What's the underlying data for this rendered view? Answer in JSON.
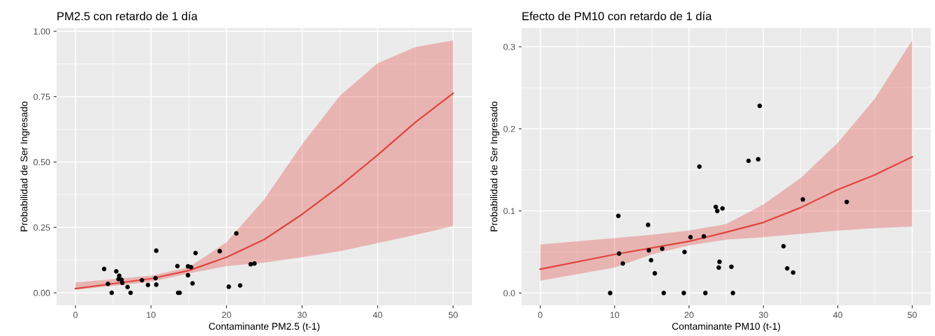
{
  "chart_data": [
    {
      "type": "scatter",
      "title": "PM2.5 con retardo de 1 día",
      "xlabel": "Contaminante PM2.5 (t-1)",
      "ylabel": "Probabilidad de Ser Ingresado",
      "xlim": [
        -2.5,
        52.5
      ],
      "ylim": [
        -0.048,
        1.013
      ],
      "xticks": [
        0,
        10,
        20,
        30,
        40,
        50
      ],
      "yticks": [
        {
          "value": 0,
          "label": "0.00"
        },
        {
          "value": 0.25,
          "label": "0.25"
        },
        {
          "value": 0.5,
          "label": "0.50"
        },
        {
          "value": 0.75,
          "label": "0.75"
        },
        {
          "value": 1,
          "label": "1.00"
        }
      ],
      "grid": true,
      "legend": false,
      "series": [
        {
          "type": "line",
          "color": "#e0453f",
          "x": [
            0,
            10,
            15,
            20,
            25,
            30,
            35,
            40,
            45,
            50
          ],
          "values": [
            0.016,
            0.054,
            0.085,
            0.136,
            0.204,
            0.3,
            0.408,
            0.527,
            0.652,
            0.763
          ],
          "lower": [
            0.011,
            0.042,
            0.074,
            0.102,
            0.115,
            0.136,
            0.159,
            0.19,
            0.221,
            0.255
          ],
          "upper": [
            0.039,
            0.065,
            0.097,
            0.193,
            0.357,
            0.568,
            0.753,
            0.878,
            0.94,
            0.965
          ]
        },
        {
          "color": "#000000",
          "marker": "circle",
          "x": [
            3.8,
            4.3,
            4.8,
            5.4,
            5.8,
            5.7,
            6.1,
            6.2,
            6.9,
            7.3,
            8.8,
            9.6,
            10.7,
            10.6,
            10.7,
            13.5,
            13.6,
            13.8,
            14.9,
            15.3,
            14.9,
            15.5,
            15.9,
            19.1,
            20.3,
            21.3,
            21.8,
            23.2,
            23.7
          ],
          "values": [
            0.091,
            0.034,
            0.0,
            0.082,
            0.065,
            0.052,
            0.05,
            0.038,
            0.022,
            0.0,
            0.048,
            0.03,
            0.161,
            0.056,
            0.031,
            0.102,
            0.0,
            0.0,
            0.101,
            0.098,
            0.067,
            0.036,
            0.152,
            0.159,
            0.023,
            0.227,
            0.028,
            0.109,
            0.112
          ]
        }
      ]
    },
    {
      "type": "scatter",
      "title": "Efecto de PM10 con retardo de 1 día",
      "xlabel": "Contaminante PM10 (t-1)",
      "ylabel": "Probabilidad de Ser Ingresado",
      "xlim": [
        -2.5,
        52.5
      ],
      "ylim": [
        -0.015,
        0.323
      ],
      "xticks": [
        0,
        10,
        20,
        30,
        40,
        50
      ],
      "yticks": [
        {
          "value": 0,
          "label": "0.0"
        },
        {
          "value": 0.1,
          "label": "0.1"
        },
        {
          "value": 0.2,
          "label": "0.2"
        },
        {
          "value": 0.3,
          "label": "0.3"
        }
      ],
      "grid": true,
      "legend": false,
      "series": [
        {
          "type": "line",
          "color": "#e0453f",
          "x": [
            0,
            10,
            15,
            20,
            25,
            30,
            35,
            40,
            45,
            50
          ],
          "values": [
            0.029,
            0.047,
            0.055,
            0.063,
            0.074,
            0.086,
            0.104,
            0.126,
            0.144,
            0.166
          ],
          "lower": [
            0.015,
            0.031,
            0.047,
            0.058,
            0.065,
            0.068,
            0.072,
            0.076,
            0.079,
            0.081
          ],
          "upper": [
            0.059,
            0.067,
            0.071,
            0.076,
            0.084,
            0.108,
            0.14,
            0.183,
            0.237,
            0.308
          ]
        },
        {
          "color": "#000000",
          "marker": "circle",
          "x": [
            9.4,
            10.5,
            10.6,
            11.1,
            14.5,
            14.6,
            14.9,
            15.4,
            16.4,
            16.6,
            19.3,
            19.4,
            20.2,
            21.4,
            22.0,
            22.2,
            23.6,
            23.8,
            24.5,
            24.1,
            24.0,
            25.7,
            25.9,
            28.0,
            29.3,
            29.5,
            32.7,
            33.2,
            34.0,
            35.3,
            41.2
          ],
          "values": [
            0,
            0.094,
            0.048,
            0.036,
            0.083,
            0.052,
            0.04,
            0.024,
            0.054,
            0,
            0,
            0.05,
            0.068,
            0.154,
            0.069,
            0,
            0.105,
            0.1,
            0.103,
            0.038,
            0.031,
            0.032,
            0,
            0.161,
            0.163,
            0.228,
            0.057,
            0.03,
            0.025,
            0.114,
            0.111
          ]
        }
      ]
    }
  ]
}
